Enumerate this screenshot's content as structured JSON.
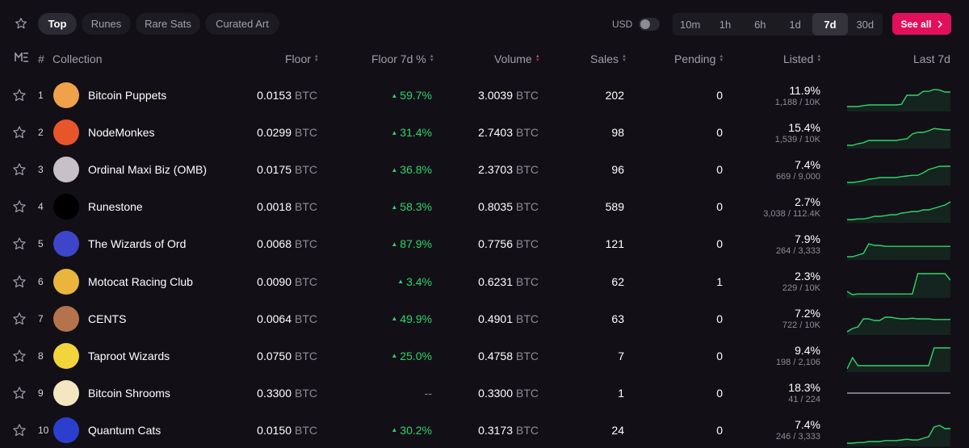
{
  "tabs": [
    "Top",
    "Runes",
    "Rare Sats",
    "Curated Art"
  ],
  "currency": "USD",
  "time_filters": [
    "10m",
    "1h",
    "6h",
    "1d",
    "7d",
    "30d"
  ],
  "see_all": "See all",
  "colors": {
    "accent": "#e2105a",
    "positive": "#2fd46b",
    "background": "#121016"
  },
  "columns": {
    "rank": "#",
    "collection": "Collection",
    "floor": "Floor",
    "floor_change": "Floor 7d %",
    "volume": "Volume",
    "sales": "Sales",
    "pending": "Pending",
    "listed": "Listed",
    "last7d": "Last 7d"
  },
  "unit": "BTC",
  "rows": [
    {
      "rank": "1",
      "name": "Bitcoin Puppets",
      "floor": "0.0153",
      "change": "59.7%",
      "up": true,
      "volume": "3.0039",
      "sales": "202",
      "pending": "0",
      "listed_pct": "11.9%",
      "listed_count": "1,188 / 10K",
      "spark": [
        0.15,
        0.15,
        0.15,
        0.18,
        0.2,
        0.2,
        0.2,
        0.2,
        0.2,
        0.2,
        0.22,
        0.5,
        0.5,
        0.5,
        0.62,
        0.62,
        0.68,
        0.66,
        0.6,
        0.6
      ],
      "avatar": "#f0a24a"
    },
    {
      "rank": "2",
      "name": "NodeMonkes",
      "floor": "0.0299",
      "change": "31.4%",
      "up": true,
      "volume": "2.7403",
      "sales": "98",
      "pending": "0",
      "listed_pct": "15.4%",
      "listed_count": "1,539 / 10K",
      "spark": [
        0.1,
        0.1,
        0.15,
        0.18,
        0.25,
        0.25,
        0.25,
        0.25,
        0.25,
        0.25,
        0.28,
        0.3,
        0.45,
        0.5,
        0.5,
        0.55,
        0.62,
        0.6,
        0.58,
        0.58
      ],
      "avatar": "#e8552a"
    },
    {
      "rank": "3",
      "name": "Ordinal Maxi Biz (OMB)",
      "floor": "0.0175",
      "change": "36.8%",
      "up": true,
      "volume": "2.3703",
      "sales": "96",
      "pending": "0",
      "listed_pct": "7.4%",
      "listed_count": "669 / 9,000",
      "spark": [
        0.1,
        0.1,
        0.12,
        0.15,
        0.2,
        0.22,
        0.25,
        0.25,
        0.25,
        0.25,
        0.28,
        0.3,
        0.32,
        0.32,
        0.4,
        0.5,
        0.55,
        0.6,
        0.6,
        0.6
      ],
      "avatar": "#c7c0c8"
    },
    {
      "rank": "4",
      "name": "Runestone",
      "floor": "0.0018",
      "change": "58.3%",
      "up": true,
      "volume": "0.8035",
      "sales": "589",
      "pending": "0",
      "listed_pct": "2.7%",
      "listed_count": "3,038 / 112.4K",
      "spark": [
        0.1,
        0.1,
        0.12,
        0.12,
        0.15,
        0.2,
        0.2,
        0.22,
        0.25,
        0.25,
        0.3,
        0.32,
        0.35,
        0.35,
        0.4,
        0.4,
        0.45,
        0.5,
        0.55,
        0.65
      ],
      "avatar": "#000000"
    },
    {
      "rank": "5",
      "name": "The Wizards of Ord",
      "floor": "0.0068",
      "change": "87.9%",
      "up": true,
      "volume": "0.7756",
      "sales": "121",
      "pending": "0",
      "listed_pct": "7.9%",
      "listed_count": "264 / 3,333",
      "spark": [
        0.1,
        0.1,
        0.15,
        0.2,
        0.5,
        0.45,
        0.45,
        0.42,
        0.42,
        0.42,
        0.42,
        0.42,
        0.42,
        0.42,
        0.42,
        0.42,
        0.42,
        0.42,
        0.42,
        0.42
      ],
      "avatar": "#3d46c9"
    },
    {
      "rank": "6",
      "name": "Motocat Racing Club",
      "floor": "0.0090",
      "change": "3.4%",
      "up": true,
      "volume": "0.6231",
      "sales": "62",
      "pending": "1",
      "listed_pct": "2.3%",
      "listed_count": "229 / 10K",
      "spark": [
        0.2,
        0.1,
        0.12,
        0.12,
        0.12,
        0.12,
        0.12,
        0.12,
        0.12,
        0.12,
        0.12,
        0.12,
        0.12,
        0.75,
        0.75,
        0.75,
        0.75,
        0.75,
        0.75,
        0.55
      ],
      "avatar": "#e9b53c"
    },
    {
      "rank": "7",
      "name": "CENTS",
      "floor": "0.0064",
      "change": "49.9%",
      "up": true,
      "volume": "0.4901",
      "sales": "63",
      "pending": "0",
      "listed_pct": "7.2%",
      "listed_count": "722 / 10K",
      "spark": [
        0.1,
        0.2,
        0.25,
        0.5,
        0.5,
        0.45,
        0.45,
        0.55,
        0.55,
        0.52,
        0.5,
        0.5,
        0.52,
        0.5,
        0.5,
        0.5,
        0.48,
        0.48,
        0.48,
        0.48
      ],
      "avatar": "#b5734d"
    },
    {
      "rank": "8",
      "name": "Taproot Wizards",
      "floor": "0.0750",
      "change": "25.0%",
      "up": true,
      "volume": "0.4758",
      "sales": "7",
      "pending": "0",
      "listed_pct": "9.4%",
      "listed_count": "198 / 2,106",
      "spark": [
        0.1,
        0.45,
        0.2,
        0.2,
        0.2,
        0.2,
        0.2,
        0.2,
        0.2,
        0.2,
        0.2,
        0.2,
        0.2,
        0.2,
        0.2,
        0.2,
        0.75,
        0.75,
        0.75,
        0.75
      ],
      "avatar": "#f2d43c"
    },
    {
      "rank": "9",
      "name": "Bitcoin Shrooms",
      "floor": "0.3300",
      "change": "--",
      "up": false,
      "volume": "0.3300",
      "sales": "1",
      "pending": "0",
      "listed_pct": "18.3%",
      "listed_count": "41 / 224",
      "spark": [
        0.5,
        0.5,
        0.5,
        0.5,
        0.5,
        0.5,
        0.5,
        0.5,
        0.5,
        0.5,
        0.5,
        0.5,
        0.5,
        0.5,
        0.5,
        0.5,
        0.5,
        0.5,
        0.5,
        0.5
      ],
      "avatar": "#f4e6c0"
    },
    {
      "rank": "10",
      "name": "Quantum Cats",
      "floor": "0.0150",
      "change": "30.2%",
      "up": true,
      "volume": "0.3173",
      "sales": "24",
      "pending": "0",
      "listed_pct": "7.4%",
      "listed_count": "246 / 3,333",
      "spark": [
        0.1,
        0.1,
        0.12,
        0.12,
        0.15,
        0.15,
        0.15,
        0.18,
        0.18,
        0.18,
        0.2,
        0.22,
        0.2,
        0.2,
        0.25,
        0.3,
        0.6,
        0.65,
        0.55,
        0.55
      ],
      "avatar": "#2b3fcf"
    }
  ]
}
